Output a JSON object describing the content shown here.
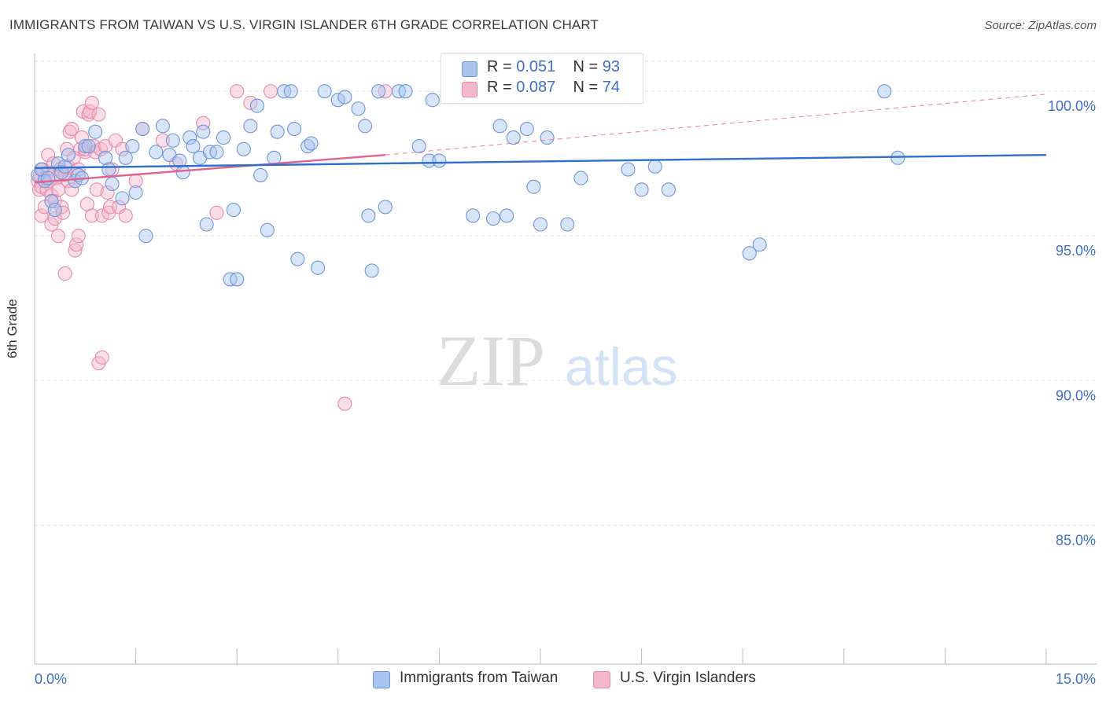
{
  "header": {
    "title": "IMMIGRANTS FROM TAIWAN VS U.S. VIRGIN ISLANDER 6TH GRADE CORRELATION CHART",
    "source": "Source: ZipAtlas.com"
  },
  "watermark": {
    "part1": "ZIP",
    "part2": "atlas"
  },
  "legend": {
    "r_label": "R =",
    "n_label": "N =",
    "series": [
      {
        "name": "Immigrants from Taiwan",
        "r": "0.051",
        "n": "93"
      },
      {
        "name": "U.S. Virgin Islanders",
        "r": "0.087",
        "n": "74"
      }
    ]
  },
  "colors": {
    "blue_fill": "#a9c4ef",
    "blue_stroke": "#6d96d8",
    "blue_line": "#2f6fcf",
    "pink_fill": "#f4b8cc",
    "pink_stroke": "#e88aa8",
    "pink_line": "#e0638f",
    "axis_label": "#3d6fc8",
    "grid": "#e3e3e3"
  },
  "chart_data": {
    "type": "scatter",
    "title": "IMMIGRANTS FROM TAIWAN VS U.S. VIRGIN ISLANDER 6TH GRADE CORRELATION CHART",
    "xlabel": "",
    "ylabel": "6th Grade",
    "xlim": [
      0,
      15
    ],
    "ylim": [
      80.2,
      101.2
    ],
    "x_tick_labels": [
      "0.0%",
      "15.0%"
    ],
    "y_ticks": [
      85,
      90,
      95,
      100
    ],
    "y_tick_labels": [
      "85.0%",
      "90.0%",
      "95.0%",
      "100.0%"
    ],
    "grid": true,
    "series": [
      {
        "name": "Immigrants from Taiwan",
        "r": 0.051,
        "n": 93,
        "trend": {
          "x": [
            0,
            15
          ],
          "y": [
            97.35,
            97.8
          ]
        },
        "points": [
          [
            0.05,
            97.1
          ],
          [
            0.1,
            97.3
          ],
          [
            0.15,
            96.9
          ],
          [
            0.2,
            97.0
          ],
          [
            0.25,
            96.2
          ],
          [
            0.3,
            95.9
          ],
          [
            0.35,
            97.5
          ],
          [
            0.4,
            97.2
          ],
          [
            0.45,
            97.4
          ],
          [
            0.5,
            97.8
          ],
          [
            0.6,
            96.9
          ],
          [
            0.65,
            97.1
          ],
          [
            0.7,
            97.0
          ],
          [
            0.75,
            98.1
          ],
          [
            0.8,
            98.1
          ],
          [
            0.9,
            98.6
          ],
          [
            1.05,
            97.7
          ],
          [
            1.1,
            97.3
          ],
          [
            1.15,
            96.8
          ],
          [
            1.3,
            96.3
          ],
          [
            1.35,
            97.7
          ],
          [
            1.45,
            98.1
          ],
          [
            1.5,
            96.5
          ],
          [
            1.6,
            98.7
          ],
          [
            1.65,
            95.0
          ],
          [
            1.8,
            97.9
          ],
          [
            1.9,
            98.8
          ],
          [
            2.0,
            97.8
          ],
          [
            2.05,
            98.3
          ],
          [
            2.15,
            97.6
          ],
          [
            2.2,
            97.2
          ],
          [
            2.3,
            98.4
          ],
          [
            2.35,
            98.1
          ],
          [
            2.45,
            97.7
          ],
          [
            2.5,
            98.6
          ],
          [
            2.55,
            95.4
          ],
          [
            2.6,
            97.9
          ],
          [
            2.7,
            97.9
          ],
          [
            2.8,
            98.4
          ],
          [
            2.9,
            93.5
          ],
          [
            2.95,
            95.9
          ],
          [
            3.0,
            93.5
          ],
          [
            3.1,
            98.0
          ],
          [
            3.2,
            98.8
          ],
          [
            3.3,
            99.5
          ],
          [
            3.35,
            97.1
          ],
          [
            3.45,
            95.2
          ],
          [
            3.55,
            97.7
          ],
          [
            3.6,
            98.6
          ],
          [
            3.7,
            100.0
          ],
          [
            3.8,
            100.0
          ],
          [
            3.85,
            98.7
          ],
          [
            3.9,
            94.2
          ],
          [
            4.05,
            98.1
          ],
          [
            4.1,
            98.2
          ],
          [
            4.2,
            93.9
          ],
          [
            4.3,
            100.0
          ],
          [
            4.5,
            99.7
          ],
          [
            4.6,
            99.8
          ],
          [
            4.8,
            99.4
          ],
          [
            4.9,
            98.8
          ],
          [
            4.95,
            95.7
          ],
          [
            5.0,
            93.8
          ],
          [
            5.1,
            100.0
          ],
          [
            5.2,
            96.0
          ],
          [
            5.4,
            100.0
          ],
          [
            5.5,
            100.0
          ],
          [
            5.7,
            98.1
          ],
          [
            5.85,
            97.6
          ],
          [
            5.9,
            99.7
          ],
          [
            6.0,
            97.6
          ],
          [
            6.5,
            95.7
          ],
          [
            6.6,
            100.0
          ],
          [
            6.8,
            95.6
          ],
          [
            6.9,
            98.8
          ],
          [
            7.0,
            95.7
          ],
          [
            7.1,
            98.4
          ],
          [
            7.3,
            98.7
          ],
          [
            7.4,
            96.7
          ],
          [
            7.5,
            95.4
          ],
          [
            7.6,
            98.4
          ],
          [
            7.9,
            95.4
          ],
          [
            8.1,
            97.0
          ],
          [
            8.5,
            100.0
          ],
          [
            8.6,
            100.0
          ],
          [
            8.8,
            97.3
          ],
          [
            9.0,
            96.6
          ],
          [
            9.2,
            97.4
          ],
          [
            9.4,
            96.6
          ],
          [
            10.6,
            94.4
          ],
          [
            10.75,
            94.7
          ],
          [
            12.6,
            100.0
          ],
          [
            12.8,
            97.7
          ]
        ]
      },
      {
        "name": "U.S. Virgin Islanders",
        "r": 0.087,
        "n": 74,
        "trend": {
          "x": [
            0,
            5.2
          ],
          "y": [
            96.85,
            97.8
          ]
        },
        "trend_extended": {
          "x": [
            5.2,
            15
          ],
          "y": [
            97.8,
            99.9
          ]
        },
        "points": [
          [
            0.05,
            96.9
          ],
          [
            0.07,
            96.6
          ],
          [
            0.08,
            97.1
          ],
          [
            0.1,
            96.7
          ],
          [
            0.1,
            95.7
          ],
          [
            0.12,
            97.3
          ],
          [
            0.15,
            96.0
          ],
          [
            0.15,
            97.0
          ],
          [
            0.18,
            96.6
          ],
          [
            0.2,
            97.8
          ],
          [
            0.2,
            97.2
          ],
          [
            0.22,
            96.9
          ],
          [
            0.25,
            96.4
          ],
          [
            0.25,
            95.4
          ],
          [
            0.28,
            97.5
          ],
          [
            0.3,
            96.2
          ],
          [
            0.3,
            95.6
          ],
          [
            0.32,
            97.0
          ],
          [
            0.35,
            96.6
          ],
          [
            0.35,
            95.0
          ],
          [
            0.38,
            97.3
          ],
          [
            0.4,
            96.0
          ],
          [
            0.42,
            95.8
          ],
          [
            0.45,
            97.1
          ],
          [
            0.45,
            93.7
          ],
          [
            0.48,
            98.0
          ],
          [
            0.5,
            97.4
          ],
          [
            0.5,
            96.9
          ],
          [
            0.52,
            98.6
          ],
          [
            0.55,
            98.7
          ],
          [
            0.55,
            96.6
          ],
          [
            0.58,
            97.7
          ],
          [
            0.6,
            94.5
          ],
          [
            0.62,
            94.7
          ],
          [
            0.65,
            95.0
          ],
          [
            0.65,
            97.3
          ],
          [
            0.68,
            98.0
          ],
          [
            0.7,
            98.4
          ],
          [
            0.72,
            99.3
          ],
          [
            0.75,
            97.9
          ],
          [
            0.75,
            98.0
          ],
          [
            0.78,
            96.1
          ],
          [
            0.8,
            99.2
          ],
          [
            0.82,
            99.3
          ],
          [
            0.85,
            99.6
          ],
          [
            0.85,
            95.7
          ],
          [
            0.88,
            98.1
          ],
          [
            0.9,
            97.9
          ],
          [
            0.92,
            96.6
          ],
          [
            0.95,
            99.2
          ],
          [
            0.98,
            98.0
          ],
          [
            1.0,
            95.7
          ],
          [
            1.05,
            98.1
          ],
          [
            1.08,
            96.5
          ],
          [
            1.1,
            95.8
          ],
          [
            1.12,
            96.0
          ],
          [
            1.15,
            97.3
          ],
          [
            1.2,
            98.3
          ],
          [
            1.25,
            96.0
          ],
          [
            1.3,
            98.0
          ],
          [
            1.35,
            95.7
          ],
          [
            1.5,
            96.9
          ],
          [
            1.6,
            98.7
          ],
          [
            1.9,
            98.3
          ],
          [
            2.1,
            97.5
          ],
          [
            2.5,
            98.9
          ],
          [
            2.7,
            95.8
          ],
          [
            3.0,
            100.0
          ],
          [
            3.2,
            99.6
          ],
          [
            3.5,
            100.0
          ],
          [
            4.6,
            89.2
          ],
          [
            5.2,
            100.0
          ],
          [
            0.95,
            90.6
          ],
          [
            1.0,
            90.8
          ]
        ]
      }
    ]
  }
}
